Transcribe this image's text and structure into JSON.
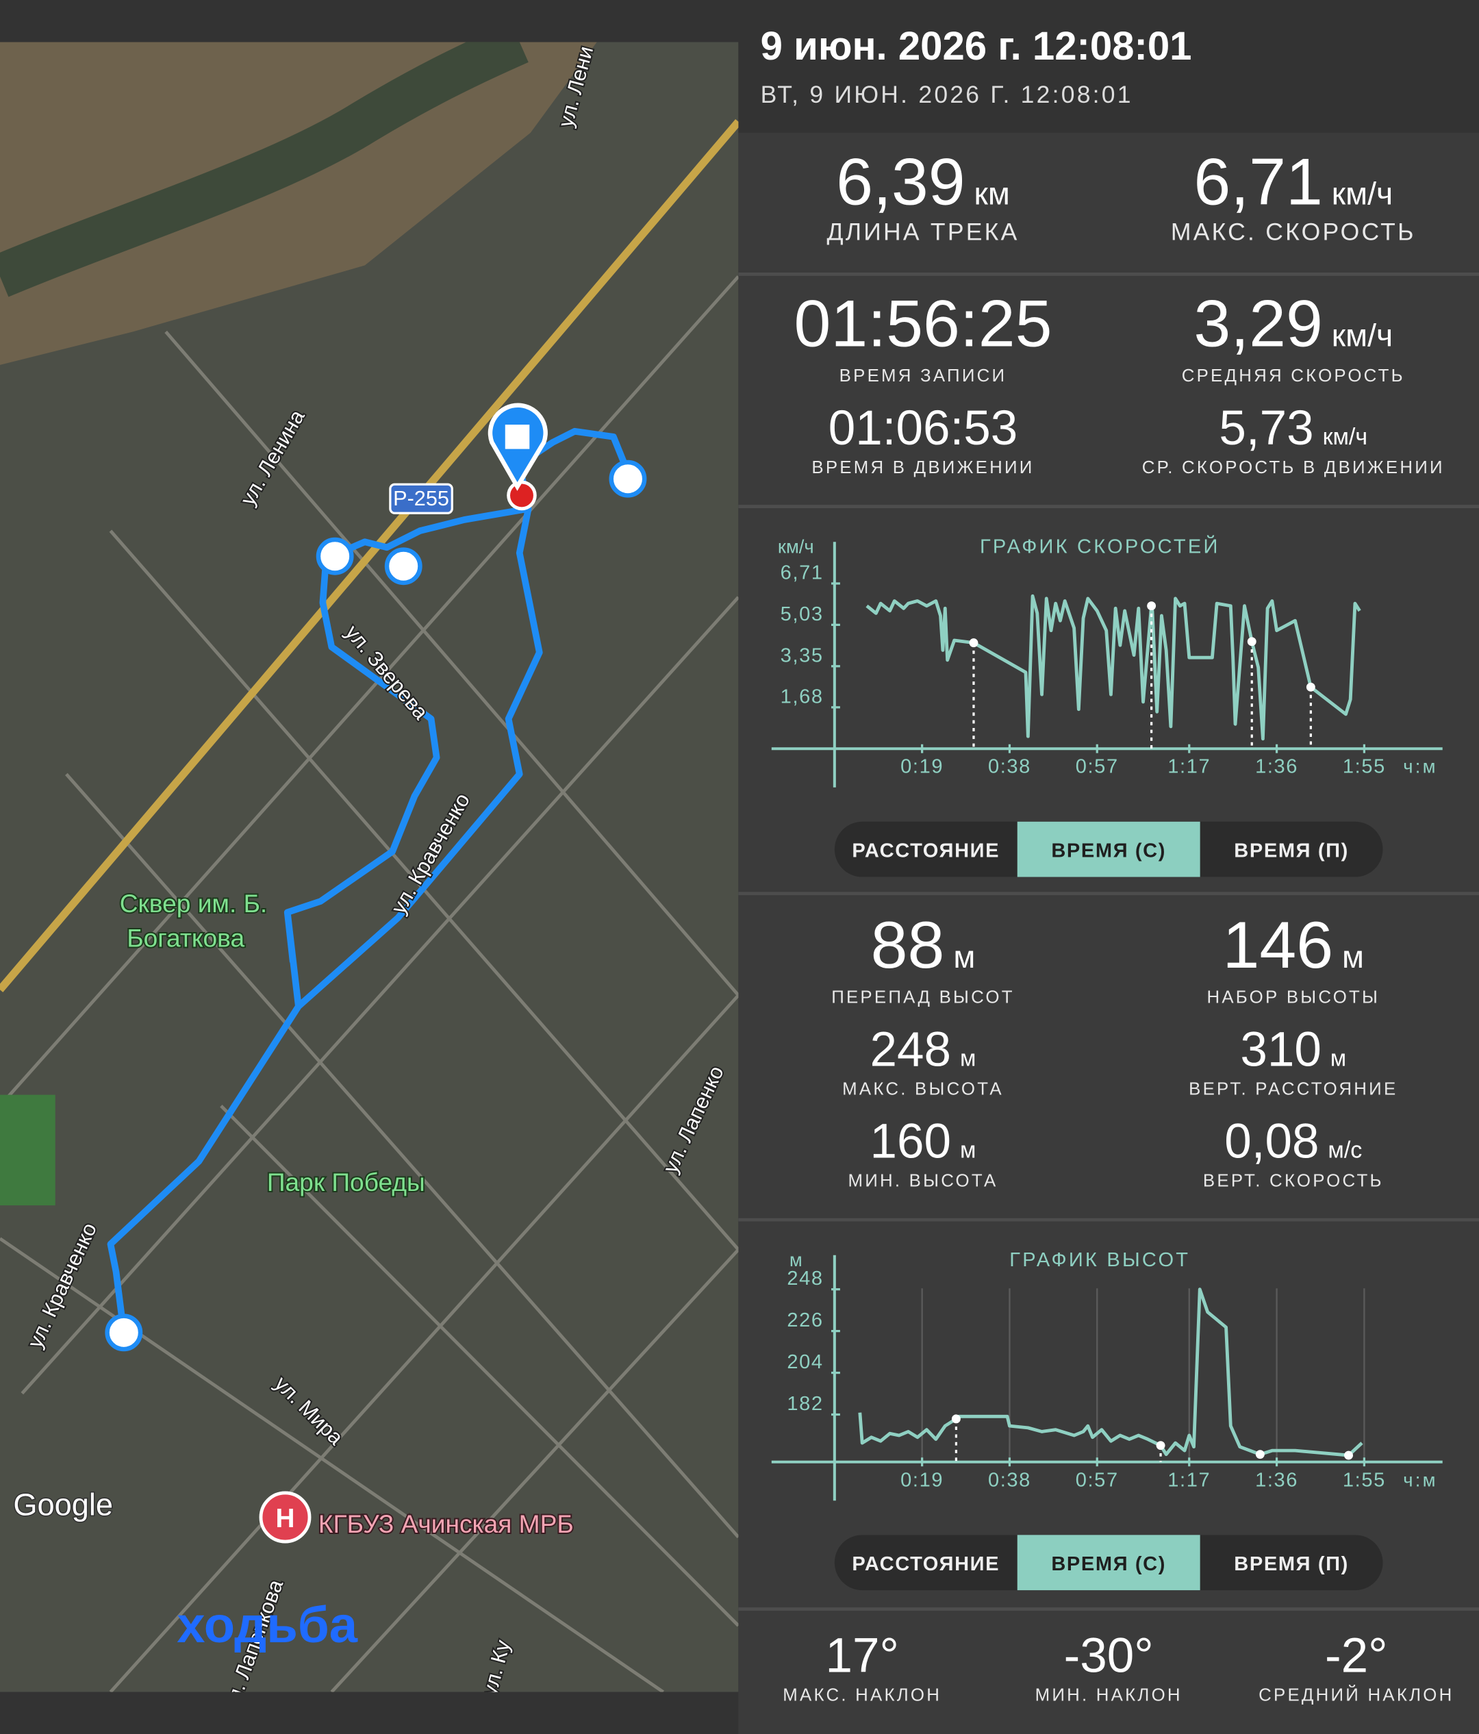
{
  "header": {
    "title": "9 июн. 2026 г. 12:08:01",
    "subtitle": "ВТ, 9 ИЮН. 2026 Г. 12:08:01"
  },
  "stats": [
    {
      "value": "6,39",
      "unit": "км",
      "label": "ДЛИНА ТРЕКА"
    },
    {
      "value": "6,71",
      "unit": "км/ч",
      "label": "МАКС. СКОРОСТЬ"
    },
    {
      "value": "01:56:25",
      "label": "ВРЕМЯ ЗАПИСИ"
    },
    {
      "value": "3,29",
      "unit": "км/ч",
      "label": "СРЕДНЯЯ СКОРОСТЬ"
    },
    {
      "value": "01:06:53",
      "label": "ВРЕМЯ В ДВИЖЕНИИ"
    },
    {
      "value": "5,73",
      "unit": "км/ч",
      "label": "СР. СКОРОСТЬ В ДВИЖЕНИИ"
    },
    {
      "value": "88",
      "unit": "м",
      "label": "ПЕРЕПАД ВЫСОТ"
    },
    {
      "value": "146",
      "unit": "м",
      "label": "НАБОР ВЫСОТЫ"
    },
    {
      "value": "248",
      "unit": "м",
      "label": "МАКС. ВЫСОТА"
    },
    {
      "value": "310",
      "unit": "м",
      "label": "ВЕРТ. РАССТОЯНИЕ"
    },
    {
      "value": "160",
      "unit": "м",
      "label": "МИН. ВЫСОТА"
    },
    {
      "value": "0,08",
      "unit": "м/с",
      "label": "ВЕРТ. СКОРОСТЬ"
    },
    {
      "value": "17°",
      "label": "МАКС. НАКЛОН"
    },
    {
      "value": "-30°",
      "label": "МИН. НАКЛОН"
    },
    {
      "value": "-2°",
      "label": "СРЕДНИЙ НАКЛОН"
    }
  ],
  "charts": [
    {
      "type": "line",
      "title": "ГРАФИК СКОРОСТЕЙ",
      "y_unit": "км/ч",
      "x_unit": "ч:м",
      "color": "#8fd0c2",
      "grid": false,
      "xlim": [
        0,
        132
      ],
      "ylim": [
        0,
        8.4
      ],
      "xticks": [
        {
          "value": 19,
          "label": "0:19"
        },
        {
          "value": 38,
          "label": "0:38"
        },
        {
          "value": 57,
          "label": "0:57"
        },
        {
          "value": 77,
          "label": "1:17"
        },
        {
          "value": 96,
          "label": "1:36"
        },
        {
          "value": 115,
          "label": "1:55"
        }
      ],
      "yticks": [
        {
          "value": 1.68,
          "label": "1,68"
        },
        {
          "value": 3.35,
          "label": "3,35"
        },
        {
          "value": 5.03,
          "label": "5,03"
        },
        {
          "value": 6.71,
          "label": "6,71"
        }
      ],
      "series": [
        {
          "x": [
            7,
            9,
            10,
            12,
            13,
            15,
            16,
            18,
            20,
            22,
            23,
            23.5,
            24,
            24.5,
            26,
            30.2,
            41.5,
            42,
            43,
            44,
            45,
            46,
            47,
            48,
            49,
            50,
            52,
            53,
            54,
            55,
            57,
            59,
            60,
            61,
            62,
            63,
            65,
            66,
            67,
            68.8,
            69,
            70,
            71,
            72,
            73,
            74,
            75,
            76,
            77,
            82,
            83,
            86,
            86.5,
            87,
            89,
            90.6,
            92,
            93,
            94,
            95,
            96,
            98,
            100,
            103.4,
            111,
            112,
            113,
            114
          ],
          "values": [
            5.8,
            5.5,
            5.9,
            5.6,
            6.0,
            5.7,
            5.9,
            6.0,
            5.8,
            6.0,
            5.4,
            4.0,
            5.7,
            3.6,
            4.4,
            4.3,
            3.1,
            0.5,
            6.2,
            5.5,
            2.2,
            6.1,
            4.8,
            5.9,
            5.2,
            6.0,
            4.9,
            1.6,
            5.3,
            6.1,
            5.6,
            4.8,
            2.2,
            5.7,
            4.2,
            5.6,
            3.8,
            5.7,
            1.9,
            5.8,
            5.6,
            1.5,
            5.4,
            4.0,
            0.9,
            6.1,
            5.8,
            5.9,
            3.7,
            3.7,
            5.9,
            5.8,
            3.7,
            1.0,
            5.8,
            4.35,
            3.3,
            0.4,
            5.7,
            6.0,
            4.8,
            5.0,
            5.2,
            2.5,
            1.4,
            2.0,
            5.9,
            5.6
          ]
        }
      ],
      "markers": {
        "x": [
          30.2,
          68.8,
          90.6,
          103.4
        ],
        "values": [
          4.3,
          5.8,
          4.35,
          2.5
        ]
      },
      "buttons": [
        "РАССТОЯНИЕ",
        "ВРЕМЯ (С)",
        "ВРЕМЯ (П)"
      ],
      "selected": 1
    },
    {
      "type": "line",
      "title": "ГРАФИК ВЫСОТ",
      "y_unit": "м",
      "x_unit": "ч:м",
      "color": "#8fd0c2",
      "grid": true,
      "xlim": [
        0,
        132
      ],
      "ylim": [
        157,
        266
      ],
      "xticks": [
        {
          "value": 19,
          "label": "0:19"
        },
        {
          "value": 38,
          "label": "0:38"
        },
        {
          "value": 57,
          "label": "0:57"
        },
        {
          "value": 77,
          "label": "1:17"
        },
        {
          "value": 96,
          "label": "1:36"
        },
        {
          "value": 115,
          "label": "1:55"
        }
      ],
      "yticks": [
        182,
        204,
        226,
        248
      ],
      "series": [
        {
          "x": [
            5.5,
            6,
            8,
            10,
            12,
            14,
            16,
            18,
            20,
            22,
            24,
            26.4,
            27,
            30,
            37.5,
            38,
            42,
            45,
            48,
            52,
            54,
            55,
            56,
            58,
            60,
            62,
            64,
            66,
            68,
            70.8,
            72,
            74,
            76,
            77,
            78,
            79.3,
            81,
            85,
            86,
            88,
            92.4,
            95,
            100,
            111.6,
            114.5
          ],
          "values": [
            183,
            167,
            170,
            168,
            172,
            171,
            173,
            170,
            174,
            169,
            176,
            179.7,
            181,
            181,
            181,
            176,
            175,
            173,
            174,
            171,
            173,
            176,
            170,
            174,
            168,
            171,
            169,
            171,
            169,
            165.7,
            161,
            167,
            163,
            171,
            165,
            248,
            236,
            228,
            176,
            165,
            161,
            163,
            163,
            160.5,
            167
          ]
        }
      ],
      "markers": {
        "x": [
          26.4,
          70.8,
          92.4,
          111.6
        ],
        "values": [
          179.7,
          165.7,
          161,
          160.5
        ]
      },
      "buttons": [
        "РАССТОЯНИЕ",
        "ВРЕМЯ (С)",
        "ВРЕМЯ (П)"
      ],
      "selected": 1
    }
  ],
  "map": {
    "labels": [
      "ул. Лени",
      "ул. Ленина",
      "Р-255",
      "ул. Зверева",
      "ул. Кравченко",
      "ул. Кравченко",
      "ул. Мира",
      "ул. Лапенко",
      "ул. Лапенкова",
      "ул. Ку"
    ],
    "green_labels": [
      "Сквер им. Б.",
      "Богаткова",
      "Парк Победы"
    ],
    "hospital_icon": "Н",
    "hospital": "КГБУЗ Ачинская МРБ",
    "google": "Google",
    "activity": "ходьба"
  }
}
